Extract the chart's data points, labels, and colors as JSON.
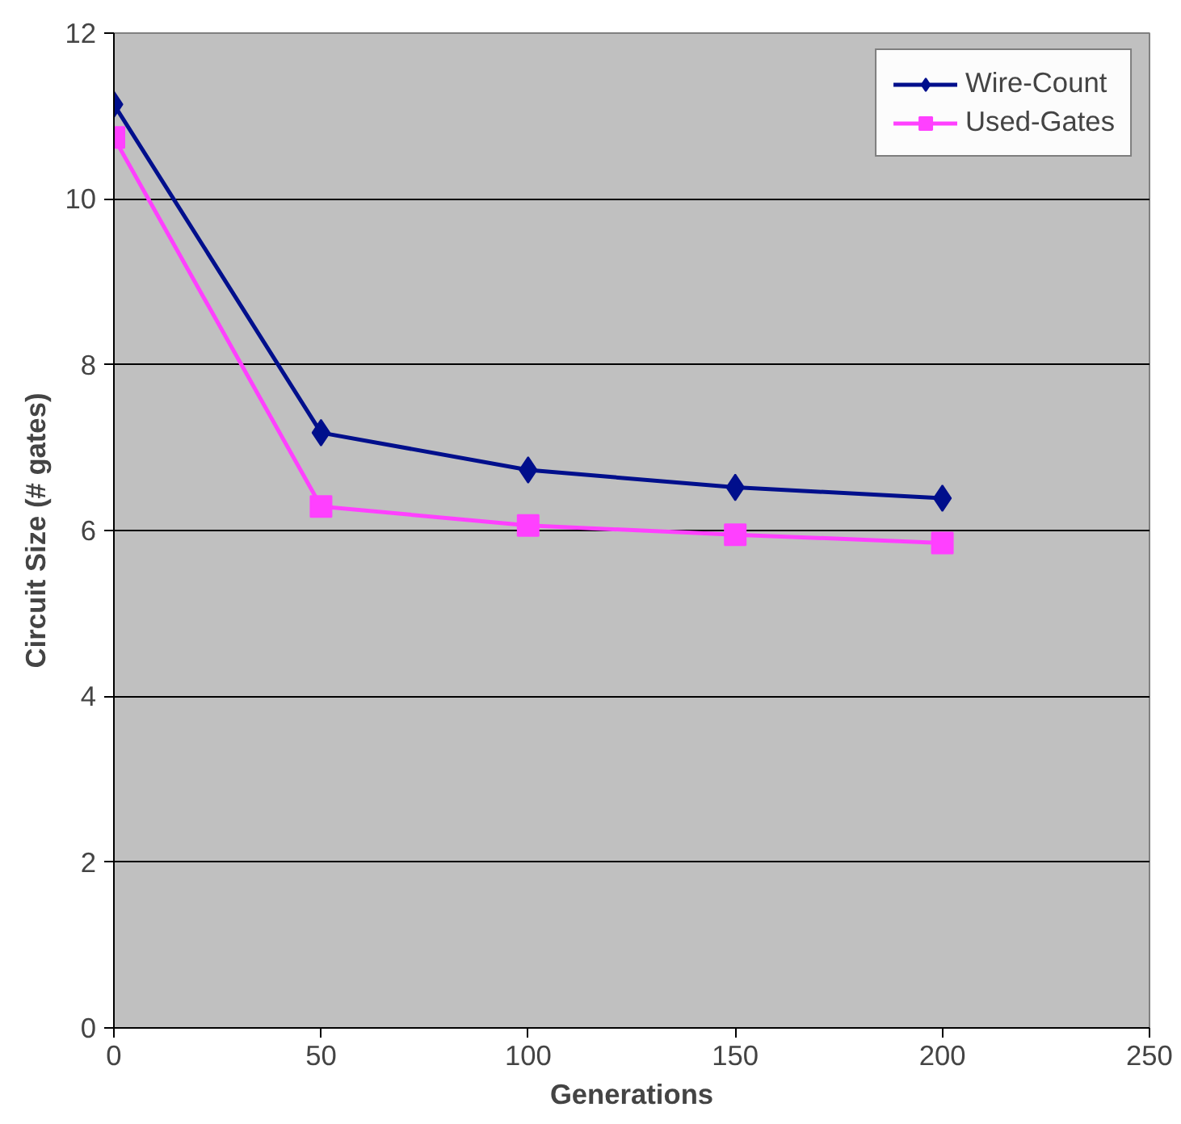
{
  "chart_data": {
    "type": "line",
    "xlabel": "Generations",
    "ylabel": "Circuit Size (# gates)",
    "x": [
      0,
      50,
      100,
      150,
      200
    ],
    "series": [
      {
        "name": "Wire-Count",
        "color": "#000f8c",
        "marker": "diamond",
        "values": [
          11.14,
          7.18,
          6.73,
          6.52,
          6.39
        ]
      },
      {
        "name": "Used-Gates",
        "color": "#ff40ff",
        "marker": "square",
        "values": [
          10.74,
          6.29,
          6.06,
          5.95,
          5.85
        ]
      }
    ],
    "xlim": [
      0,
      250
    ],
    "xticks": [
      0,
      50,
      100,
      150,
      200,
      250
    ],
    "ylim": [
      0,
      12
    ],
    "yticks": [
      0,
      2,
      4,
      6,
      8,
      10,
      12
    ],
    "grid": "y",
    "legend": "top right"
  }
}
